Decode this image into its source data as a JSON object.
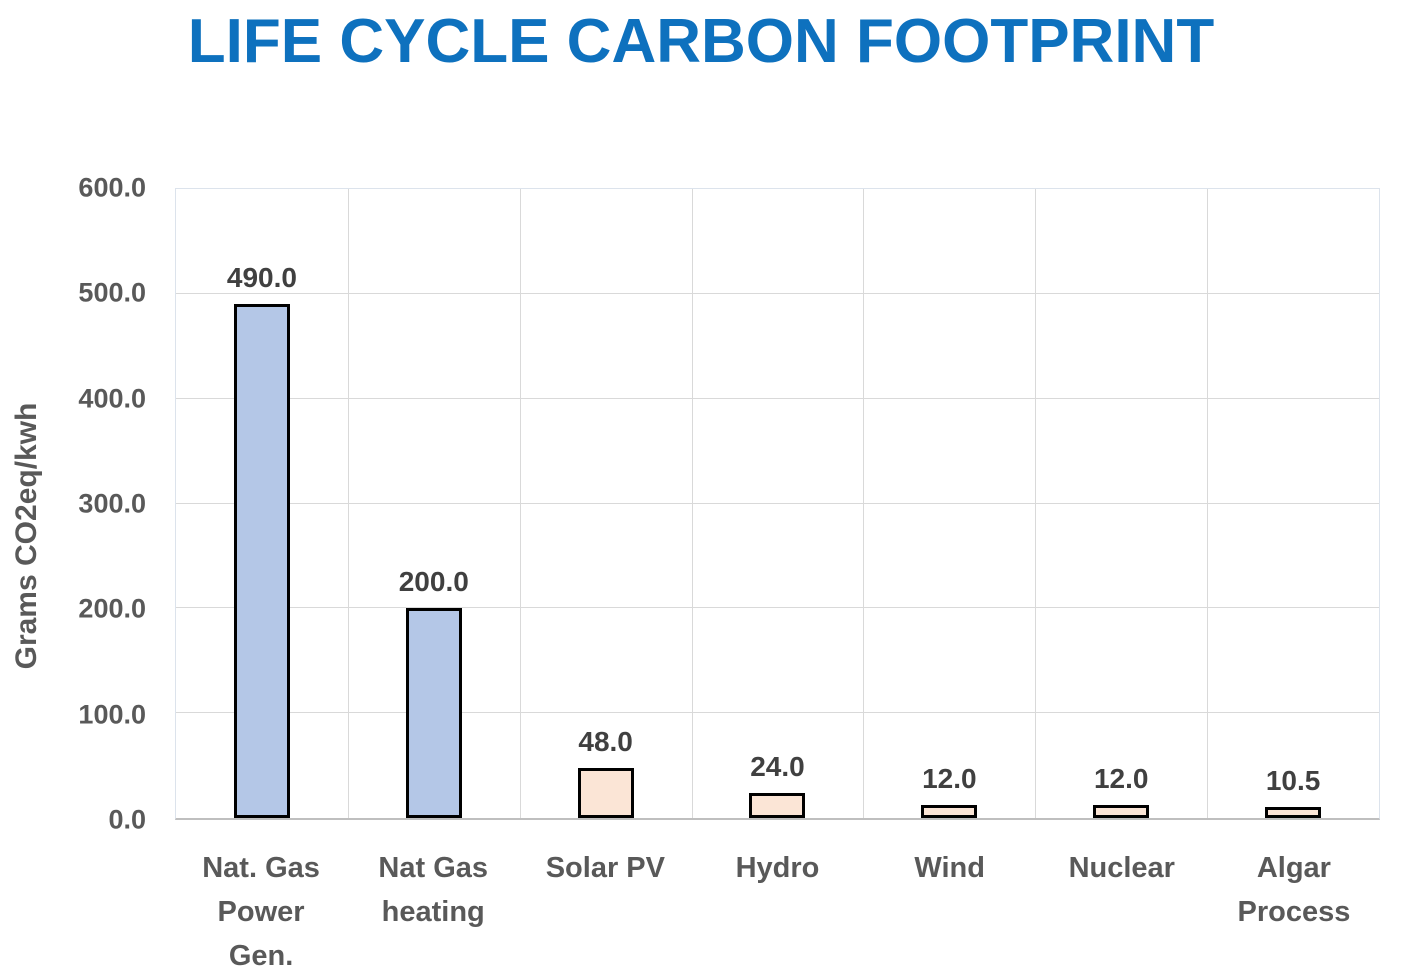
{
  "chart_data": {
    "type": "bar",
    "title": "LIFE CYCLE CARBON FOOTPRINT",
    "xlabel": "",
    "ylabel": "Grams CO2eq/kwh",
    "ylim": [
      0,
      600
    ],
    "grid": true,
    "legend": false,
    "yticks": [
      0,
      100,
      200,
      300,
      400,
      500,
      600
    ],
    "ytick_labels": [
      "0.0",
      "100.0",
      "200.0",
      "300.0",
      "400.0",
      "500.0",
      "600.0"
    ],
    "categories": [
      "Nat. Gas Power Gen.",
      "Nat Gas heating",
      "Solar PV",
      "Hydro",
      "Wind",
      "Nuclear",
      "Algar Process"
    ],
    "category_lines": [
      [
        "Nat. Gas",
        "Power",
        "Gen."
      ],
      [
        "Nat Gas",
        "heating"
      ],
      [
        "Solar PV"
      ],
      [
        "Hydro"
      ],
      [
        "Wind"
      ],
      [
        "Nuclear"
      ],
      [
        "Algar",
        "Process"
      ]
    ],
    "values": [
      490.0,
      200.0,
      48.0,
      24.0,
      12.0,
      12.0,
      10.5
    ],
    "value_labels": [
      "490.0",
      "200.0",
      "48.0",
      "24.0",
      "12.0",
      "12.0",
      "10.5"
    ],
    "bar_colors": [
      "#B4C7E7",
      "#B4C7E7",
      "#FBE5D6",
      "#FBE5D6",
      "#FBE5D6",
      "#FBE5D6",
      "#FBE5D6"
    ],
    "colors": {
      "title": "#0E71BE",
      "axis_text": "#595959",
      "data_label": "#404040",
      "bar_border": "#000000",
      "gridline": "#D9D9D9",
      "axis_line": "#BFBFBF"
    }
  }
}
